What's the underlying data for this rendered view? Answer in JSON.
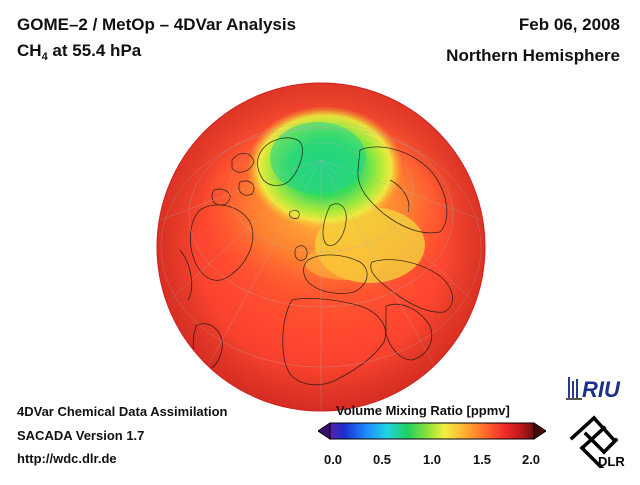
{
  "header": {
    "title_line1": "GOME–2 / MetOp – 4DVar Analysis",
    "title_species": "CH",
    "title_species_sub": "4",
    "title_level": " at 55.4 hPa",
    "date": "Feb 06, 2008",
    "region": "Northern Hemisphere"
  },
  "footer": {
    "line1": "4DVar Chemical Data Assimilation",
    "line2": "SACADA Version 1.7",
    "line3": "http://wdc.dlr.de"
  },
  "colorbar": {
    "title": "Volume Mixing Ratio [ppmv]",
    "ticks": [
      "0.0",
      "0.5",
      "1.0",
      "1.5",
      "2.0"
    ],
    "min": 0.0,
    "max": 2.0,
    "colors": [
      "#7b1fa2",
      "#1a3ccf",
      "#1e90ff",
      "#20d0e0",
      "#20d060",
      "#9be23a",
      "#f0f040",
      "#ffb030",
      "#ff6a2a",
      "#f02828",
      "#c01818",
      "#6e1010"
    ]
  },
  "map": {
    "projection": "orthographic",
    "hemisphere": "Northern Hemisphere",
    "field_colors": {
      "low": "#22d76a",
      "mid": "#c8ef3c",
      "high": "#ff5a32",
      "background": "#f03a30"
    }
  },
  "logos": {
    "riu": "RIU",
    "dlr": "DLR"
  }
}
